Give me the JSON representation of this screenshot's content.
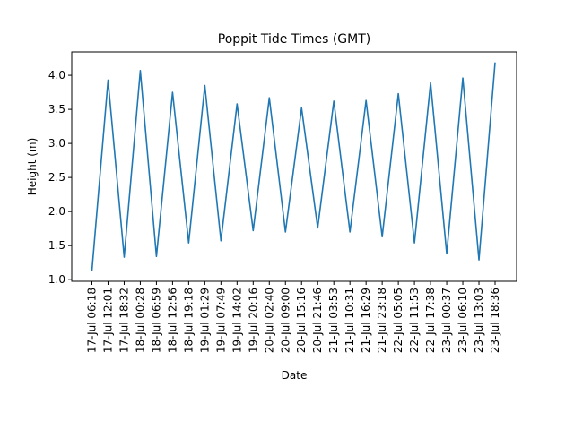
{
  "chart_data": {
    "type": "line",
    "title": "Poppit Tide Times (GMT)",
    "xlabel": "Date",
    "ylabel": "Height (m)",
    "categories": [
      "17-Jul 06:18",
      "17-Jul 12:01",
      "17-Jul 18:32",
      "18-Jul 00:28",
      "18-Jul 06:59",
      "18-Jul 12:56",
      "18-Jul 19:18",
      "19-Jul 01:29",
      "19-Jul 07:49",
      "19-Jul 14:02",
      "19-Jul 20:16",
      "20-Jul 02:40",
      "20-Jul 09:00",
      "20-Jul 15:16",
      "20-Jul 21:46",
      "21-Jul 03:53",
      "21-Jul 10:31",
      "21-Jul 16:29",
      "21-Jul 23:18",
      "22-Jul 05:05",
      "22-Jul 11:53",
      "22-Jul 17:38",
      "23-Jul 00:37",
      "23-Jul 06:10",
      "23-Jul 13:03",
      "23-Jul 18:36"
    ],
    "series": [
      {
        "values": [
          1.13,
          3.93,
          1.33,
          4.07,
          1.34,
          3.75,
          1.54,
          3.85,
          1.57,
          3.58,
          1.72,
          3.67,
          1.7,
          3.52,
          1.76,
          3.62,
          1.7,
          3.63,
          1.63,
          3.73,
          1.54,
          3.89,
          1.38,
          3.96,
          1.29,
          4.19
        ],
        "color": "#1f77b4"
      }
    ],
    "yticks": [
      "1.0",
      "1.5",
      "2.0",
      "2.5",
      "3.0",
      "3.5",
      "4.0"
    ],
    "ylim": [
      0.976,
      4.343
    ],
    "grid": false,
    "legend": "none"
  }
}
